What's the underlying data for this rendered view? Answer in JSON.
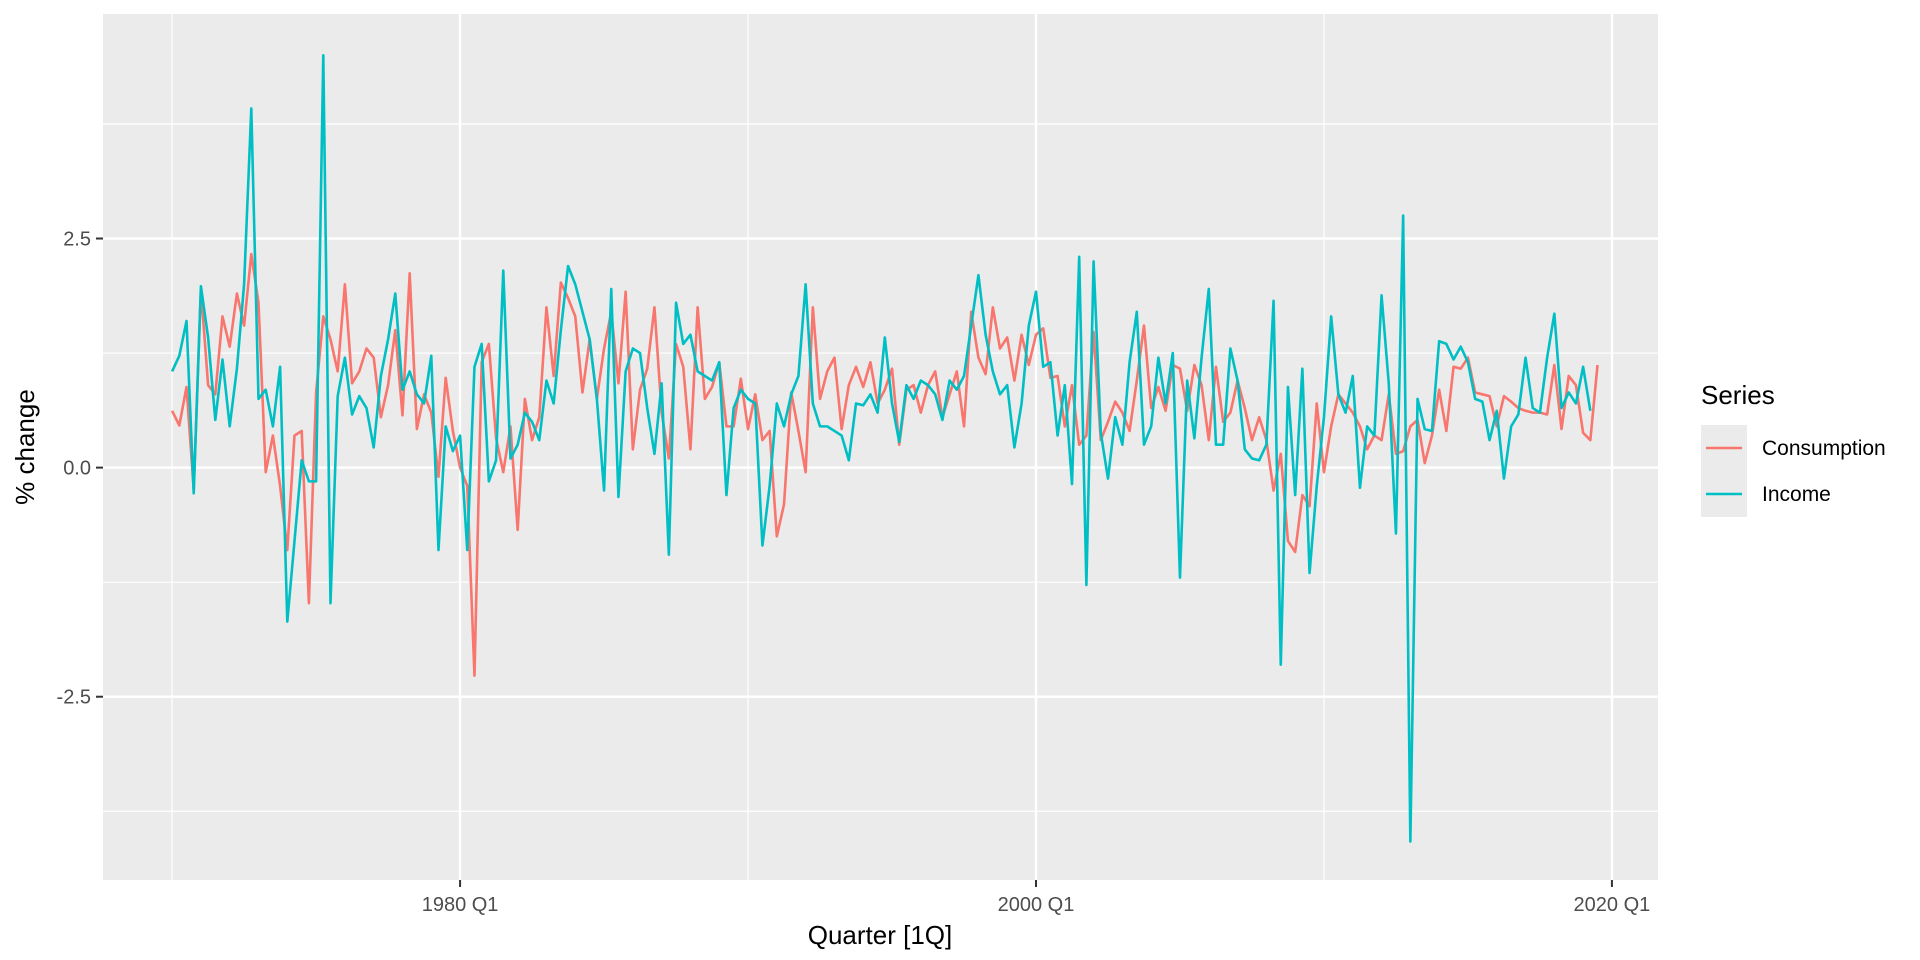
{
  "chart_data": {
    "type": "line",
    "title": "",
    "xlabel": "Quarter [1Q]",
    "ylabel": "% change",
    "x_ticks": [
      {
        "label": "1980 Q1",
        "value": 1980.0
      },
      {
        "label": "2000 Q1",
        "value": 2000.0
      },
      {
        "label": "2020 Q1",
        "value": 2020.0
      }
    ],
    "x_minor_ticks": [
      1970.0,
      1990.0,
      2010.0
    ],
    "y_ticks": [
      {
        "label": "-2.5",
        "value": -2.5
      },
      {
        "label": "0.0",
        "value": 0.0
      },
      {
        "label": "2.5",
        "value": 2.5
      }
    ],
    "y_minor_ticks": [
      -3.75,
      -1.25,
      1.25,
      3.75
    ],
    "xlim": [
      1967.6,
      2021.6
    ],
    "ylim": [
      -4.5,
      4.95
    ],
    "grid": true,
    "legend": {
      "title": "Series",
      "placement": "right"
    },
    "x_start": 1970.0,
    "x_step": 0.25,
    "series": [
      {
        "name": "Consumption",
        "color": "#F8766D",
        "values": [
          0.62,
          0.46,
          0.88,
          -0.24,
          1.95,
          0.9,
          0.8,
          1.65,
          1.32,
          1.9,
          1.55,
          2.33,
          1.8,
          -0.05,
          0.35,
          -0.2,
          -0.9,
          0.35,
          0.4,
          -1.48,
          0.82,
          1.65,
          1.4,
          1.05,
          2.0,
          0.92,
          1.05,
          1.3,
          1.2,
          0.55,
          0.9,
          1.5,
          0.57,
          2.12,
          0.42,
          0.8,
          0.6,
          -0.1,
          0.98,
          0.4,
          0.0,
          -0.2,
          -2.27,
          1.15,
          1.35,
          0.32,
          -0.05,
          0.45,
          -0.68,
          0.75,
          0.3,
          0.55,
          1.75,
          1.0,
          2.02,
          1.85,
          1.65,
          0.82,
          1.4,
          0.75,
          1.3,
          1.7,
          0.92,
          1.92,
          0.2,
          0.85,
          1.08,
          1.75,
          0.6,
          0.1,
          1.35,
          1.1,
          0.2,
          1.75,
          0.75,
          0.88,
          1.15,
          0.45,
          0.45,
          0.97,
          0.42,
          0.8,
          0.3,
          0.4,
          -0.75,
          -0.4,
          0.82,
          0.4,
          -0.05,
          1.75,
          0.75,
          1.05,
          1.2,
          0.42,
          0.9,
          1.1,
          0.88,
          1.15,
          0.7,
          0.85,
          1.08,
          0.25,
          0.85,
          0.9,
          0.6,
          0.9,
          1.05,
          0.55,
          0.8,
          1.05,
          0.45,
          1.7,
          1.2,
          1.02,
          1.75,
          1.3,
          1.42,
          0.95,
          1.45,
          1.12,
          1.45,
          1.52,
          0.98,
          1.0,
          0.45,
          0.9,
          0.25,
          0.35,
          1.48,
          0.3,
          0.5,
          0.72,
          0.6,
          0.4,
          0.95,
          1.55,
          0.65,
          0.88,
          0.62,
          1.12,
          1.08,
          0.62,
          1.12,
          0.9,
          0.3,
          1.1,
          0.5,
          0.6,
          0.95,
          0.65,
          0.3,
          0.55,
          0.3,
          -0.25,
          0.15,
          -0.8,
          -0.92,
          -0.3,
          -0.42,
          0.7,
          -0.05,
          0.45,
          0.8,
          0.7,
          0.6,
          0.45,
          0.2,
          0.35,
          0.3,
          0.8,
          0.15,
          0.18,
          0.45,
          0.52,
          0.05,
          0.35,
          0.85,
          0.4,
          1.1,
          1.08,
          1.2,
          0.82,
          0.8,
          0.78,
          0.45,
          0.78,
          0.72,
          0.65,
          0.62,
          0.6,
          0.6,
          0.58,
          1.12,
          0.42,
          1.0,
          0.9,
          0.38,
          0.3,
          1.12
        ]
      },
      {
        "name": "Income",
        "color": "#00BFC4",
        "values": [
          1.05,
          1.22,
          1.6,
          -0.28,
          1.98,
          1.42,
          0.52,
          1.18,
          0.45,
          1.08,
          2.0,
          3.92,
          0.75,
          0.85,
          0.45,
          1.1,
          -1.68,
          -0.8,
          0.08,
          -0.15,
          -0.15,
          4.5,
          -1.48,
          0.78,
          1.2,
          0.58,
          0.78,
          0.65,
          0.22,
          1.0,
          1.4,
          1.9,
          0.85,
          1.05,
          0.8,
          0.7,
          1.22,
          -0.9,
          0.45,
          0.18,
          0.35,
          -0.9,
          1.1,
          1.35,
          -0.15,
          0.08,
          2.15,
          0.1,
          0.25,
          0.6,
          0.5,
          0.3,
          0.95,
          0.7,
          1.5,
          2.2,
          2.0,
          1.7,
          1.4,
          0.75,
          -0.25,
          1.95,
          -0.32,
          1.05,
          1.3,
          1.25,
          0.65,
          0.15,
          0.92,
          -0.95,
          1.8,
          1.35,
          1.45,
          1.05,
          1.0,
          0.95,
          1.15,
          -0.3,
          0.65,
          0.85,
          0.75,
          0.7,
          -0.85,
          -0.2,
          0.7,
          0.45,
          0.8,
          1.0,
          2.0,
          0.7,
          0.45,
          0.45,
          0.4,
          0.35,
          0.08,
          0.7,
          0.68,
          0.8,
          0.6,
          1.42,
          0.7,
          0.28,
          0.9,
          0.75,
          0.95,
          0.9,
          0.8,
          0.52,
          0.95,
          0.85,
          1.0,
          1.55,
          2.1,
          1.45,
          1.05,
          0.8,
          0.9,
          0.22,
          0.7,
          1.55,
          1.92,
          1.1,
          1.15,
          0.35,
          0.9,
          -0.18,
          2.3,
          -1.28,
          2.25,
          0.38,
          -0.12,
          0.55,
          0.25,
          1.15,
          1.7,
          0.25,
          0.45,
          1.2,
          0.7,
          1.25,
          -1.2,
          0.95,
          0.32,
          1.2,
          1.95,
          0.25,
          0.25,
          1.3,
          0.95,
          0.2,
          0.1,
          0.08,
          0.25,
          1.82,
          -2.15,
          0.88,
          -0.3,
          1.08,
          -1.15,
          -0.2,
          0.55,
          1.65,
          0.8,
          0.6,
          1.0,
          -0.22,
          0.45,
          0.35,
          1.88,
          0.92,
          -0.72,
          2.75,
          -4.08,
          0.75,
          0.42,
          0.4,
          1.38,
          1.35,
          1.18,
          1.32,
          1.15,
          0.75,
          0.72,
          0.3,
          0.62,
          -0.12,
          0.45,
          0.58,
          1.2,
          0.65,
          0.6,
          1.2,
          1.68,
          0.65,
          0.82,
          0.7,
          1.1,
          0.62
        ]
      }
    ]
  }
}
